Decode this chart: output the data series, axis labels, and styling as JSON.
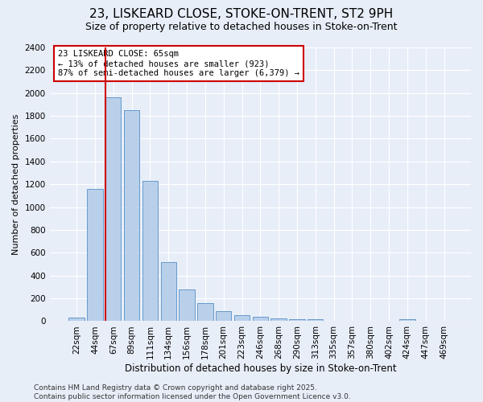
{
  "title": "23, LISKEARD CLOSE, STOKE-ON-TRENT, ST2 9PH",
  "subtitle": "Size of property relative to detached houses in Stoke-on-Trent",
  "xlabel": "Distribution of detached houses by size in Stoke-on-Trent",
  "ylabel": "Number of detached properties",
  "categories": [
    "22sqm",
    "44sqm",
    "67sqm",
    "89sqm",
    "111sqm",
    "134sqm",
    "156sqm",
    "178sqm",
    "201sqm",
    "223sqm",
    "246sqm",
    "268sqm",
    "290sqm",
    "313sqm",
    "335sqm",
    "357sqm",
    "380sqm",
    "402sqm",
    "424sqm",
    "447sqm",
    "469sqm"
  ],
  "values": [
    28,
    1160,
    1960,
    1850,
    1230,
    515,
    275,
    160,
    90,
    50,
    40,
    25,
    18,
    18,
    0,
    0,
    0,
    0,
    18,
    0,
    0
  ],
  "bar_color": "#b8d0ea",
  "bar_edge_color": "#6699cc",
  "bg_color": "#e8eef8",
  "grid_color": "#ffffff",
  "vline_x_index": 2,
  "vline_color": "#cc0000",
  "annotation_text": "23 LISKEARD CLOSE: 65sqm\n← 13% of detached houses are smaller (923)\n87% of semi-detached houses are larger (6,379) →",
  "annotation_box_facecolor": "white",
  "annotation_box_edgecolor": "#cc0000",
  "footer": "Contains HM Land Registry data © Crown copyright and database right 2025.\nContains public sector information licensed under the Open Government Licence v3.0.",
  "ylim": [
    0,
    2400
  ],
  "yticks": [
    0,
    200,
    400,
    600,
    800,
    1000,
    1200,
    1400,
    1600,
    1800,
    2000,
    2200,
    2400
  ],
  "title_fontsize": 11,
  "subtitle_fontsize": 9,
  "xlabel_fontsize": 8.5,
  "ylabel_fontsize": 8,
  "tick_fontsize": 7.5,
  "footer_fontsize": 6.5,
  "bar_width": 0.85
}
